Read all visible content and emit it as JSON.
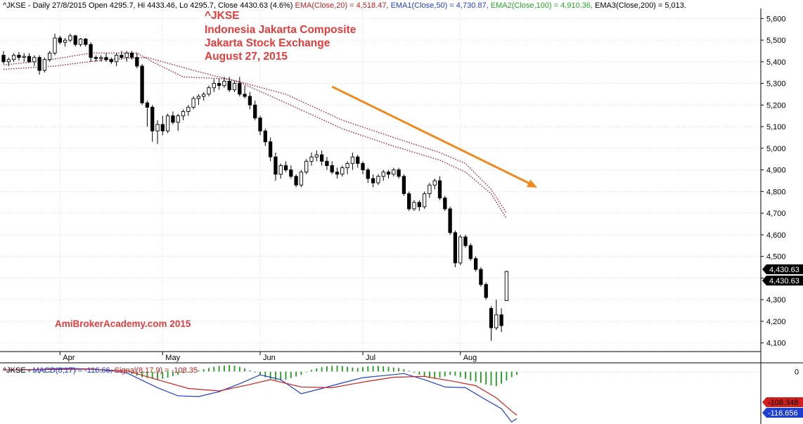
{
  "header": {
    "ohlc_text": "^JKSE - Daily 27/8/2015 Open 4295.7, Hi 4433.46, Lo 4295.7, Close 4430.63 (4.6%)",
    "ema20": "EMA(Close,20) = 4,518.47,",
    "ema50": "EMA1(Close,50) = 4,730.87,",
    "ema100": "EMA2(Close,100) = 4,910.36,",
    "ema200": "EMA3(Close,200) = 5,013."
  },
  "annotation": {
    "line1": "^JKSE",
    "line2": "Indonesia Jakarta Composite",
    "line3": "Jakarta Stock Exchange",
    "line4": "August 27, 2015",
    "watermark": "AmiBrokerAcademy.com 2015"
  },
  "macd_header": {
    "prefix": "^JKSE - ",
    "macd": "MACD(8,17) = -116.66,",
    "signal": "Signal(8,17,9) = -108.35"
  },
  "colors": {
    "up_body": "#ffffff",
    "down_body": "#000000",
    "ema": "#a0243c",
    "trend_arrow": "#f08a1e",
    "annotation_text": "#e63b3b",
    "macd_line": "#1f3fd0",
    "signal_line": "#d01f1f",
    "histogram": "#1e9a1e",
    "grid": "#d8d8d8"
  },
  "chart_data": [
    {
      "type": "candlestick",
      "title": "^JKSE",
      "y_ticks": [
        4100,
        4200,
        4300,
        4400,
        4500,
        4600,
        4700,
        4800,
        4900,
        5000,
        5100,
        5200,
        5300,
        5400,
        5500,
        5600
      ],
      "y_tick_labels": [
        "4,100",
        "4,200",
        "4,300",
        "4,400",
        "4,500",
        "4,600",
        "4,700",
        "4,800",
        "4,900",
        "5,000",
        "5,100",
        "5,200",
        "5,300",
        "5,400",
        "5,500",
        "5,600"
      ],
      "ylim": [
        4060,
        5640
      ],
      "x_month_labels": [
        {
          "label": "Apr",
          "bar": 11
        },
        {
          "label": "May",
          "bar": 31
        },
        {
          "label": "Jun",
          "bar": 50
        },
        {
          "label": "Jul",
          "bar": 70
        },
        {
          "label": "Aug",
          "bar": 89
        }
      ],
      "last_price_labels": [
        "4,430.63",
        "4,430.63"
      ],
      "candles": [
        [
          5430,
          5450,
          5390,
          5400
        ],
        [
          5400,
          5420,
          5380,
          5410
        ],
        [
          5410,
          5440,
          5400,
          5430
        ],
        [
          5430,
          5445,
          5405,
          5420
        ],
        [
          5420,
          5440,
          5400,
          5425
        ],
        [
          5425,
          5440,
          5395,
          5400
        ],
        [
          5400,
          5430,
          5380,
          5420
        ],
        [
          5420,
          5430,
          5340,
          5360
        ],
        [
          5360,
          5420,
          5350,
          5410
        ],
        [
          5410,
          5450,
          5400,
          5440
        ],
        [
          5440,
          5530,
          5430,
          5510
        ],
        [
          5510,
          5520,
          5480,
          5490
        ],
        [
          5490,
          5510,
          5470,
          5500
        ],
        [
          5500,
          5530,
          5490,
          5520
        ],
        [
          5520,
          5525,
          5470,
          5480
        ],
        [
          5480,
          5510,
          5470,
          5505
        ],
        [
          5505,
          5510,
          5470,
          5480
        ],
        [
          5480,
          5490,
          5400,
          5420
        ],
        [
          5420,
          5430,
          5400,
          5415
        ],
        [
          5415,
          5430,
          5400,
          5420
        ],
        [
          5420,
          5440,
          5400,
          5410
        ],
        [
          5410,
          5420,
          5390,
          5400
        ],
        [
          5400,
          5440,
          5380,
          5430
        ],
        [
          5430,
          5450,
          5410,
          5420
        ],
        [
          5420,
          5450,
          5400,
          5440
        ],
        [
          5440,
          5450,
          5410,
          5420
        ],
        [
          5420,
          5440,
          5370,
          5380
        ],
        [
          5380,
          5390,
          5200,
          5210
        ],
        [
          5210,
          5220,
          5100,
          5190
        ],
        [
          5190,
          5200,
          5030,
          5080
        ],
        [
          5080,
          5130,
          5020,
          5110
        ],
        [
          5110,
          5150,
          5060,
          5080
        ],
        [
          5080,
          5160,
          5070,
          5150
        ],
        [
          5150,
          5170,
          5110,
          5120
        ],
        [
          5120,
          5160,
          5080,
          5150
        ],
        [
          5150,
          5180,
          5130,
          5170
        ],
        [
          5170,
          5200,
          5150,
          5190
        ],
        [
          5190,
          5240,
          5180,
          5230
        ],
        [
          5230,
          5250,
          5200,
          5240
        ],
        [
          5240,
          5260,
          5220,
          5250
        ],
        [
          5250,
          5290,
          5240,
          5280
        ],
        [
          5280,
          5320,
          5260,
          5300
        ],
        [
          5300,
          5320,
          5270,
          5290
        ],
        [
          5290,
          5330,
          5280,
          5310
        ],
        [
          5310,
          5330,
          5260,
          5270
        ],
        [
          5270,
          5310,
          5260,
          5300
        ],
        [
          5300,
          5330,
          5240,
          5250
        ],
        [
          5250,
          5290,
          5230,
          5240
        ],
        [
          5240,
          5260,
          5180,
          5200
        ],
        [
          5200,
          5220,
          5130,
          5140
        ],
        [
          5140,
          5150,
          5060,
          5080
        ],
        [
          5080,
          5090,
          5010,
          5030
        ],
        [
          5030,
          5050,
          4940,
          4960
        ],
        [
          4960,
          4980,
          4850,
          4880
        ],
        [
          4880,
          4930,
          4860,
          4920
        ],
        [
          4920,
          4940,
          4890,
          4900
        ],
        [
          4900,
          4920,
          4860,
          4870
        ],
        [
          4870,
          4880,
          4820,
          4830
        ],
        [
          4830,
          4900,
          4820,
          4890
        ],
        [
          4890,
          4950,
          4880,
          4940
        ],
        [
          4940,
          4980,
          4920,
          4960
        ],
        [
          4960,
          4990,
          4940,
          4970
        ],
        [
          4970,
          4990,
          4920,
          4940
        ],
        [
          4940,
          4960,
          4900,
          4920
        ],
        [
          4920,
          4940,
          4880,
          4890
        ],
        [
          4890,
          4910,
          4860,
          4880
        ],
        [
          4880,
          4920,
          4870,
          4910
        ],
        [
          4910,
          4940,
          4880,
          4930
        ],
        [
          4930,
          4980,
          4900,
          4960
        ],
        [
          4960,
          4970,
          4910,
          4930
        ],
        [
          4930,
          4940,
          4880,
          4900
        ],
        [
          4900,
          4910,
          4840,
          4860
        ],
        [
          4860,
          4880,
          4820,
          4840
        ],
        [
          4840,
          4880,
          4830,
          4870
        ],
        [
          4870,
          4900,
          4850,
          4890
        ],
        [
          4890,
          4900,
          4860,
          4880
        ],
        [
          4880,
          4910,
          4870,
          4900
        ],
        [
          4900,
          4910,
          4860,
          4870
        ],
        [
          4870,
          4880,
          4780,
          4790
        ],
        [
          4790,
          4800,
          4710,
          4720
        ],
        [
          4720,
          4760,
          4710,
          4750
        ],
        [
          4750,
          4760,
          4710,
          4730
        ],
        [
          4730,
          4800,
          4720,
          4790
        ],
        [
          4790,
          4840,
          4770,
          4830
        ],
        [
          4830,
          4860,
          4810,
          4850
        ],
        [
          4850,
          4870,
          4760,
          4770
        ],
        [
          4770,
          4780,
          4710,
          4720
        ],
        [
          4720,
          4730,
          4600,
          4610
        ],
        [
          4610,
          4620,
          4450,
          4470
        ],
        [
          4470,
          4600,
          4460,
          4590
        ],
        [
          4590,
          4600,
          4540,
          4550
        ],
        [
          4550,
          4560,
          4480,
          4490
        ],
        [
          4490,
          4500,
          4430,
          4440
        ],
        [
          4440,
          4450,
          4360,
          4370
        ],
        [
          4370,
          4380,
          4300,
          4310
        ],
        [
          4260,
          4270,
          4110,
          4170
        ],
        [
          4170,
          4300,
          4160,
          4230
        ],
        [
          4230,
          4260,
          4150,
          4180
        ],
        [
          4295.7,
          4433.46,
          4295.7,
          4430.63
        ]
      ],
      "ema20": [
        [
          0,
          5385
        ],
        [
          8,
          5405
        ],
        [
          17,
          5440
        ],
        [
          26,
          5440
        ],
        [
          29,
          5400
        ],
        [
          35,
          5330
        ],
        [
          44,
          5320
        ],
        [
          55,
          5250
        ],
        [
          66,
          5130
        ],
        [
          76,
          5050
        ],
        [
          85,
          4980
        ],
        [
          90,
          4930
        ],
        [
          95,
          4810
        ],
        [
          98,
          4700
        ]
      ],
      "ema50": [
        [
          0,
          5365
        ],
        [
          10,
          5380
        ],
        [
          20,
          5410
        ],
        [
          28,
          5420
        ],
        [
          37,
          5360
        ],
        [
          46,
          5305
        ],
        [
          55,
          5210
        ],
        [
          66,
          5090
        ],
        [
          76,
          5010
        ],
        [
          85,
          4945
        ],
        [
          90,
          4890
        ],
        [
          95,
          4790
        ],
        [
          98,
          4675
        ]
      ],
      "ema100_ema200_label_values": [
        4910.36,
        5013
      ]
    },
    {
      "type": "macd",
      "title": "MACD(8,17), Signal(8,17,9)",
      "y_ticks": [
        0
      ],
      "y_tick_labels": [
        "0"
      ],
      "ylim": [
        -130,
        20
      ],
      "last_value_labels": [
        "-108.348",
        "-116.656"
      ],
      "macd": [
        [
          0,
          4
        ],
        [
          6,
          5
        ],
        [
          12,
          8
        ],
        [
          18,
          6
        ],
        [
          24,
          -3
        ],
        [
          30,
          -40
        ],
        [
          34,
          -60
        ],
        [
          38,
          -62
        ],
        [
          42,
          -50
        ],
        [
          46,
          -30
        ],
        [
          50,
          -8
        ],
        [
          54,
          -20
        ],
        [
          58,
          -55
        ],
        [
          62,
          -42
        ],
        [
          66,
          -28
        ],
        [
          70,
          -15
        ],
        [
          74,
          -10
        ],
        [
          78,
          -5
        ],
        [
          82,
          -20
        ],
        [
          86,
          -38
        ],
        [
          90,
          -40
        ],
        [
          94,
          -70
        ],
        [
          97,
          -92
        ],
        [
          99,
          -125
        ],
        [
          100,
          -116.66
        ]
      ],
      "signal": [
        [
          0,
          4
        ],
        [
          8,
          5
        ],
        [
          16,
          6
        ],
        [
          24,
          2
        ],
        [
          30,
          -20
        ],
        [
          36,
          -42
        ],
        [
          42,
          -48
        ],
        [
          48,
          -32
        ],
        [
          52,
          -20
        ],
        [
          58,
          -38
        ],
        [
          64,
          -40
        ],
        [
          70,
          -26
        ],
        [
          76,
          -14
        ],
        [
          82,
          -12
        ],
        [
          88,
          -25
        ],
        [
          92,
          -35
        ],
        [
          96,
          -65
        ],
        [
          99,
          -98
        ],
        [
          100,
          -108.35
        ]
      ],
      "histogram": [
        0,
        0,
        0,
        1,
        -1,
        -2,
        -3,
        -4,
        -3,
        -2,
        -1,
        0,
        1,
        2,
        2,
        1,
        0,
        -1,
        -2,
        -2,
        -1,
        0,
        0,
        1,
        -2,
        -6,
        -10,
        -14,
        -16,
        -18,
        -20,
        -18,
        -15,
        -11,
        -8,
        -4,
        -2,
        0,
        3,
        6,
        9,
        12,
        14,
        15,
        16,
        15,
        12,
        8,
        3,
        -2,
        -8,
        -14,
        -18,
        -21,
        -22,
        -20,
        -16,
        -12,
        -8,
        -2,
        4,
        8,
        11,
        13,
        14,
        15,
        14,
        12,
        10,
        9,
        11,
        13,
        14,
        14,
        13,
        12,
        10,
        9,
        6,
        2,
        -3,
        -8,
        -13,
        -16,
        -18,
        -15,
        -12,
        -8,
        -10,
        -14,
        -18,
        -22,
        -25,
        -28,
        -32,
        -34,
        -36,
        -30,
        -22,
        -14,
        -8
      ]
    }
  ],
  "trend_arrow": {
    "from_bar": 64,
    "from_value": 5285,
    "to_bar": 104,
    "to_value": 4818
  }
}
